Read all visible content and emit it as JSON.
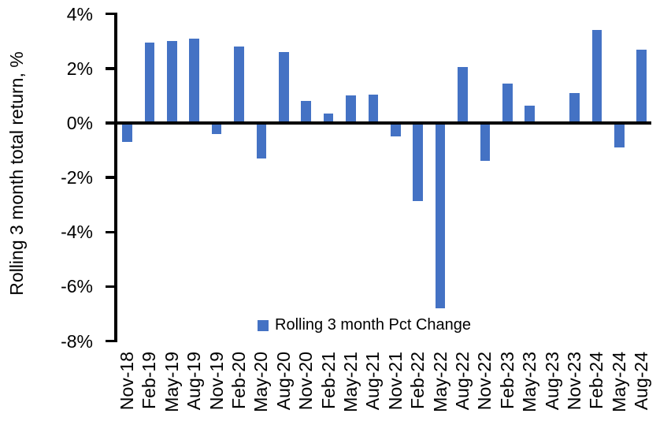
{
  "chart_data": {
    "type": "bar",
    "title": "",
    "xlabel": "",
    "ylabel": "Rolling 3 month total return, %",
    "categories": [
      "Nov-18",
      "Feb-19",
      "May-19",
      "Aug-19",
      "Nov-19",
      "Feb-20",
      "May-20",
      "Aug-20",
      "Nov-20",
      "Feb-21",
      "May-21",
      "Aug-21",
      "Nov-21",
      "Feb-22",
      "May-22",
      "Aug-22",
      "Nov-22",
      "Feb-23",
      "May-23",
      "Aug-23",
      "Nov-23",
      "Feb-24",
      "May-24",
      "Aug-24"
    ],
    "values": [
      -0.7,
      2.95,
      3.0,
      3.1,
      -0.4,
      2.8,
      -1.3,
      2.6,
      0.8,
      0.35,
      1.0,
      1.05,
      -0.5,
      -2.85,
      -6.8,
      2.05,
      -1.4,
      1.45,
      0.65,
      0.0,
      1.1,
      3.4,
      -0.9,
      2.7
    ],
    "ylim": [
      -8,
      4
    ],
    "ytick_step": 2,
    "ytick_labels": [
      "4%",
      "2%",
      "0%",
      "-2%",
      "-4%",
      "-6%",
      "-8%"
    ],
    "grid": false,
    "legend_position": "bottom-center-inside",
    "legend": [
      {
        "label": "Rolling 3 month Pct Change",
        "color": "#4472C4"
      }
    ],
    "bar_color": "#4472C4",
    "axis_color": "#000000"
  }
}
